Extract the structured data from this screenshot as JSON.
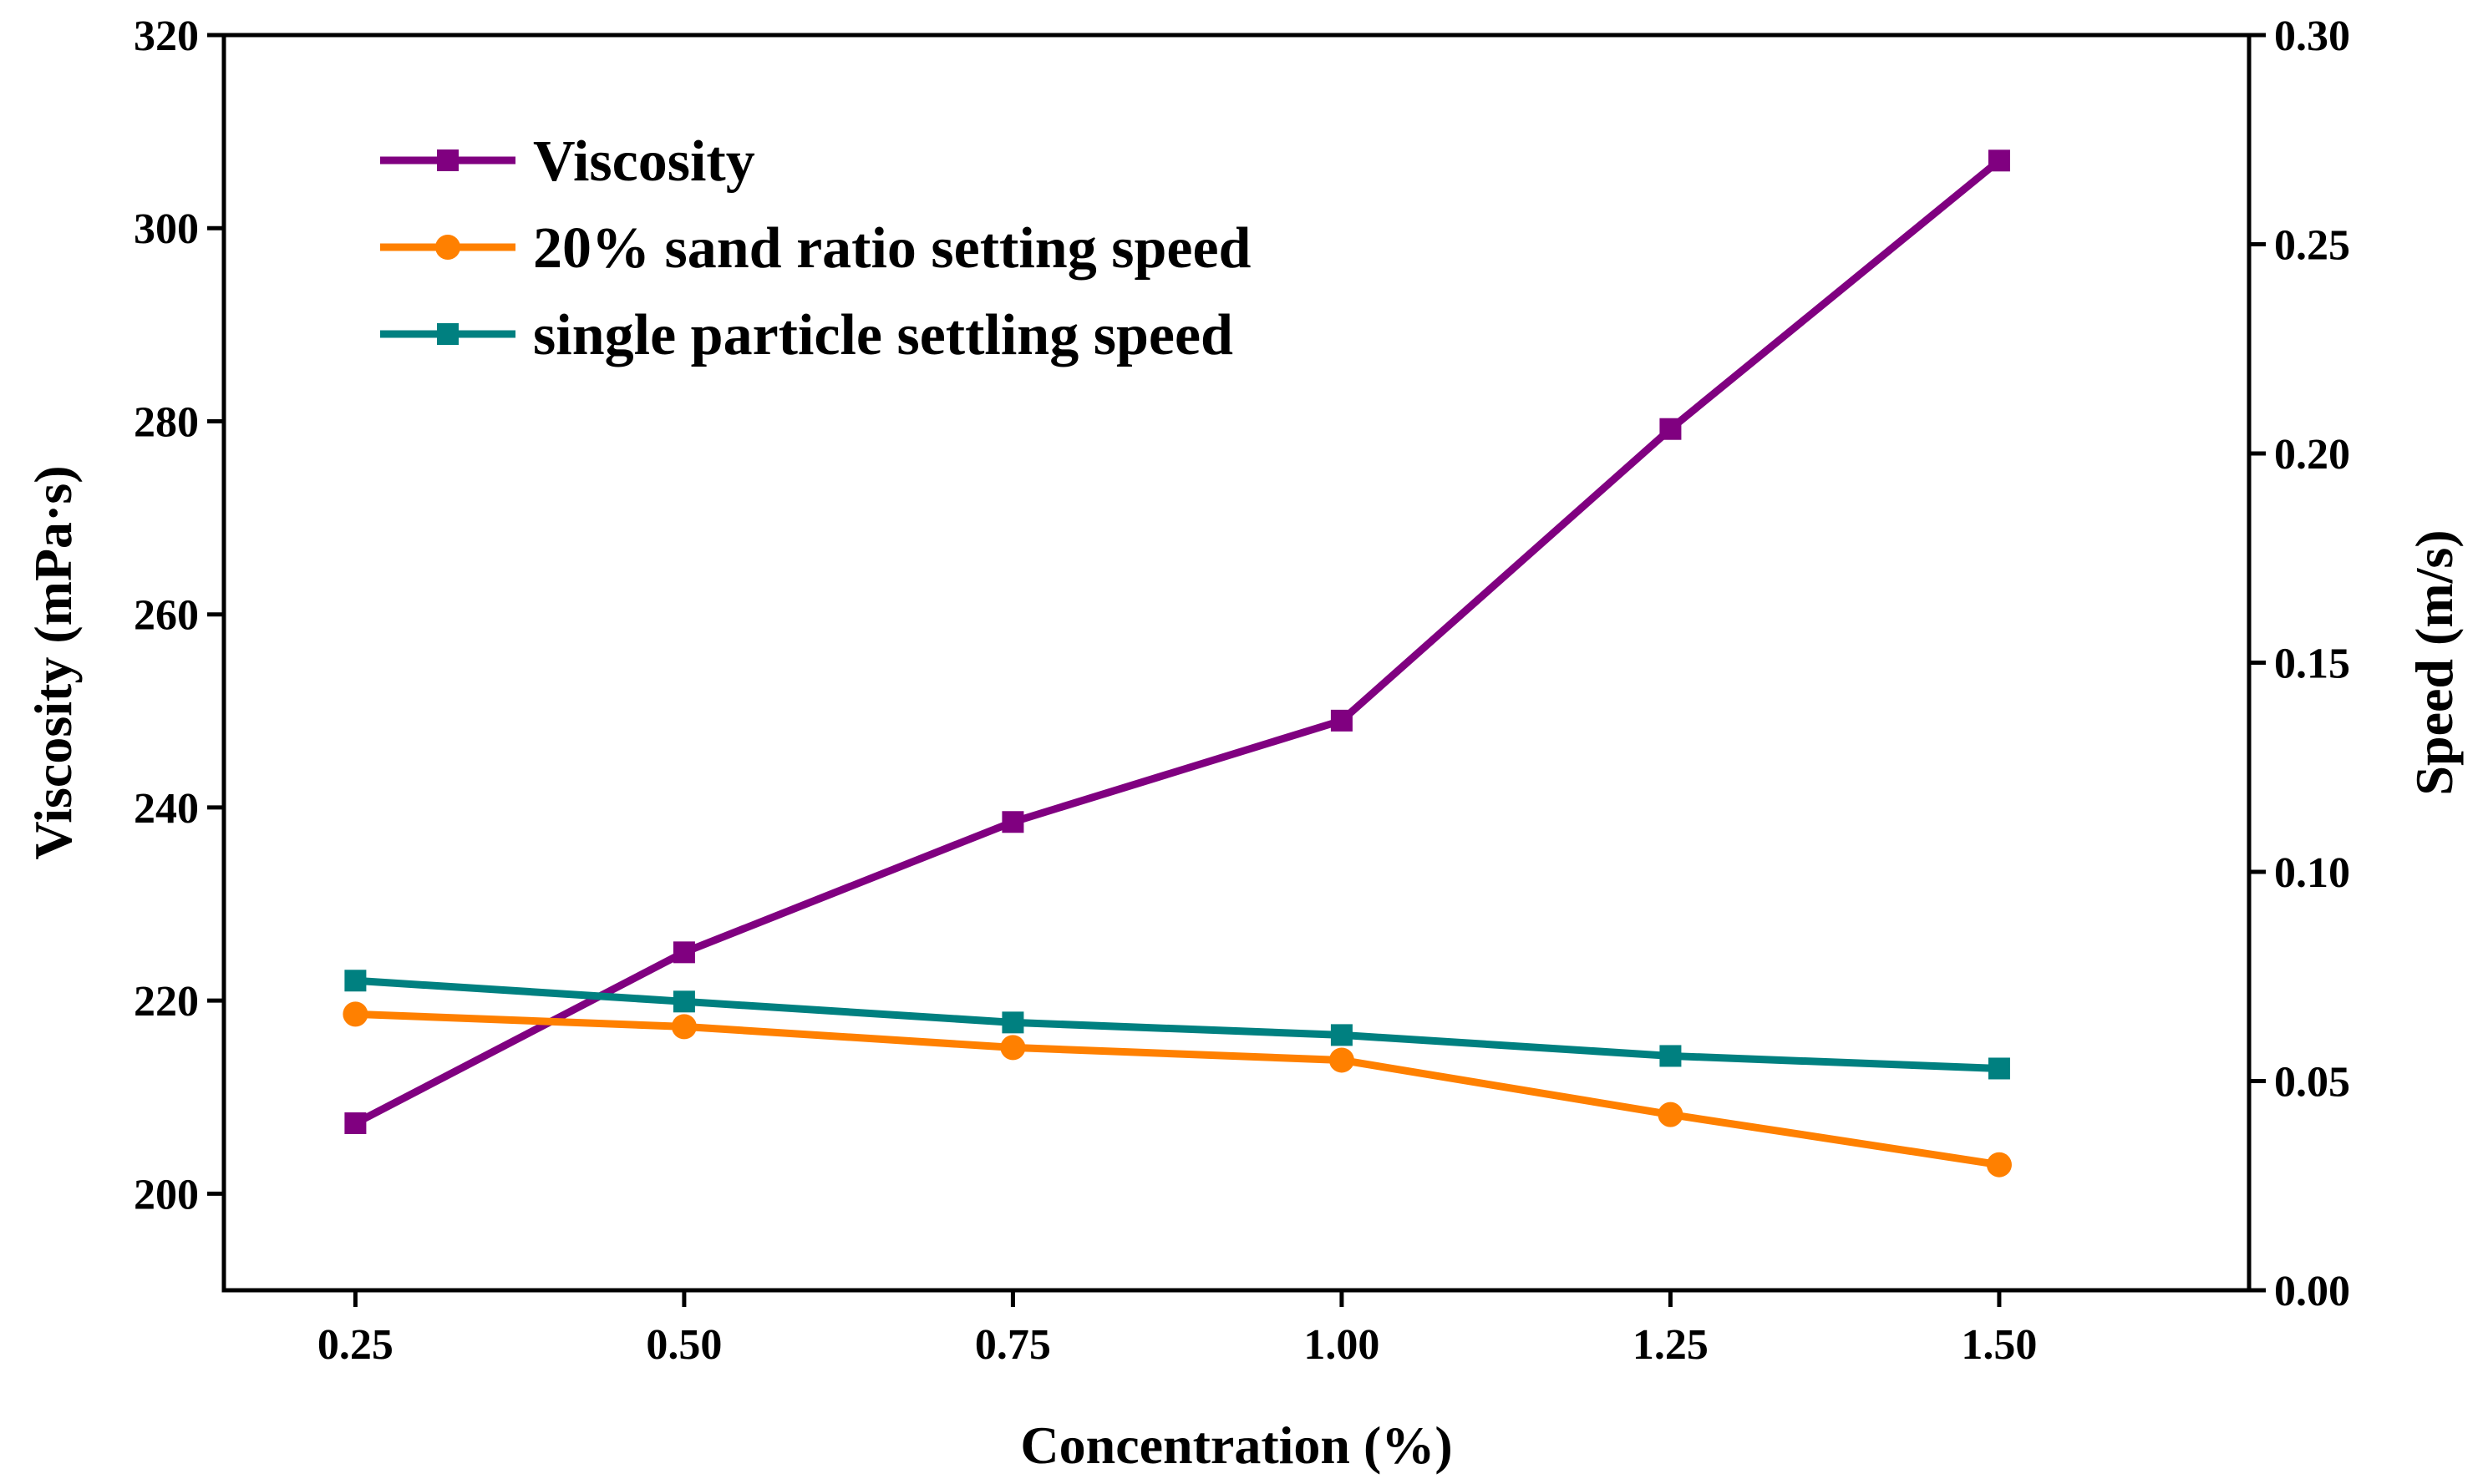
{
  "chart_data": {
    "type": "line",
    "x": [
      0.25,
      0.5,
      0.75,
      1.0,
      1.25,
      1.5
    ],
    "x_tick_labels": [
      "0.25",
      "0.50",
      "0.75",
      "1.00",
      "1.25",
      "1.50"
    ],
    "xlabel": "Concentration (%)",
    "xlim": [
      0.15,
      1.69
    ],
    "ylabel_left": "Viscosity (mPa·s)",
    "ylim_left": [
      190,
      320
    ],
    "yticks_left": [
      200,
      220,
      240,
      260,
      280,
      300,
      320
    ],
    "ylabel_right": "Speed (m/s)",
    "ylim_right": [
      0.0,
      0.3
    ],
    "yticks_right": [
      "0.00",
      "0.05",
      "0.10",
      "0.15",
      "0.20",
      "0.25",
      "0.30"
    ],
    "legend_position": "top-left",
    "series": [
      {
        "name": "Viscosity",
        "axis": "left",
        "marker": "square",
        "color": "#800080",
        "values": [
          207.3,
          225.0,
          238.5,
          249.0,
          279.2,
          307.0
        ]
      },
      {
        "name": "20% sand ratio setting speed",
        "axis": "right",
        "marker": "circle",
        "color": "#FF8000",
        "values": [
          0.066,
          0.063,
          0.058,
          0.055,
          0.042,
          0.03
        ]
      },
      {
        "name": "single particle settling speed",
        "axis": "right",
        "marker": "square",
        "color": "#008080",
        "values": [
          0.074,
          0.069,
          0.064,
          0.061,
          0.056,
          0.053
        ]
      }
    ]
  }
}
